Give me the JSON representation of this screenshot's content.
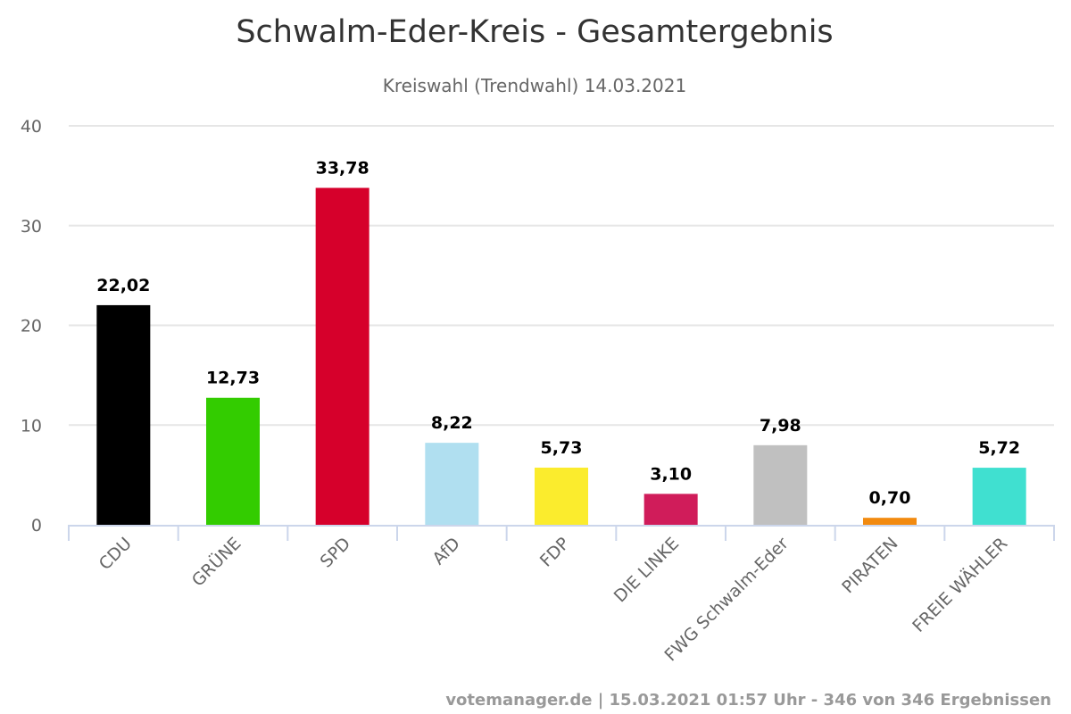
{
  "chart_data": {
    "type": "bar",
    "title": "Schwalm-Eder-Kreis - Gesamtergebnis",
    "subtitle": "Kreiswahl (Trendwahl) 14.03.2021",
    "xlabel": "",
    "ylabel": "",
    "ylim": [
      0,
      40
    ],
    "yticks": [
      "0",
      "10",
      "20",
      "30",
      "40"
    ],
    "grid": true,
    "categories": [
      "CDU",
      "GRÜNE",
      "SPD",
      "AfD",
      "FDP",
      "DIE LINKE",
      "FWG Schwalm-Eder",
      "PIRATEN",
      "FREIE WÄHLER"
    ],
    "values": [
      22.02,
      12.73,
      33.78,
      8.22,
      5.73,
      3.1,
      7.98,
      0.7,
      5.72
    ],
    "value_labels": [
      "22,02",
      "12,73",
      "33,78",
      "8,22",
      "5,73",
      "3,10",
      "7,98",
      "0,70",
      "5,72"
    ],
    "colors": [
      "#000000",
      "#33cc00",
      "#d6002b",
      "#b0dff0",
      "#fbec2d",
      "#d01c5a",
      "#c0c0c0",
      "#f28a0f",
      "#40e0d0"
    ]
  },
  "credits": "votemanager.de | 15.03.2021 01:57 Uhr - 346 von 346 Ergebnissen"
}
